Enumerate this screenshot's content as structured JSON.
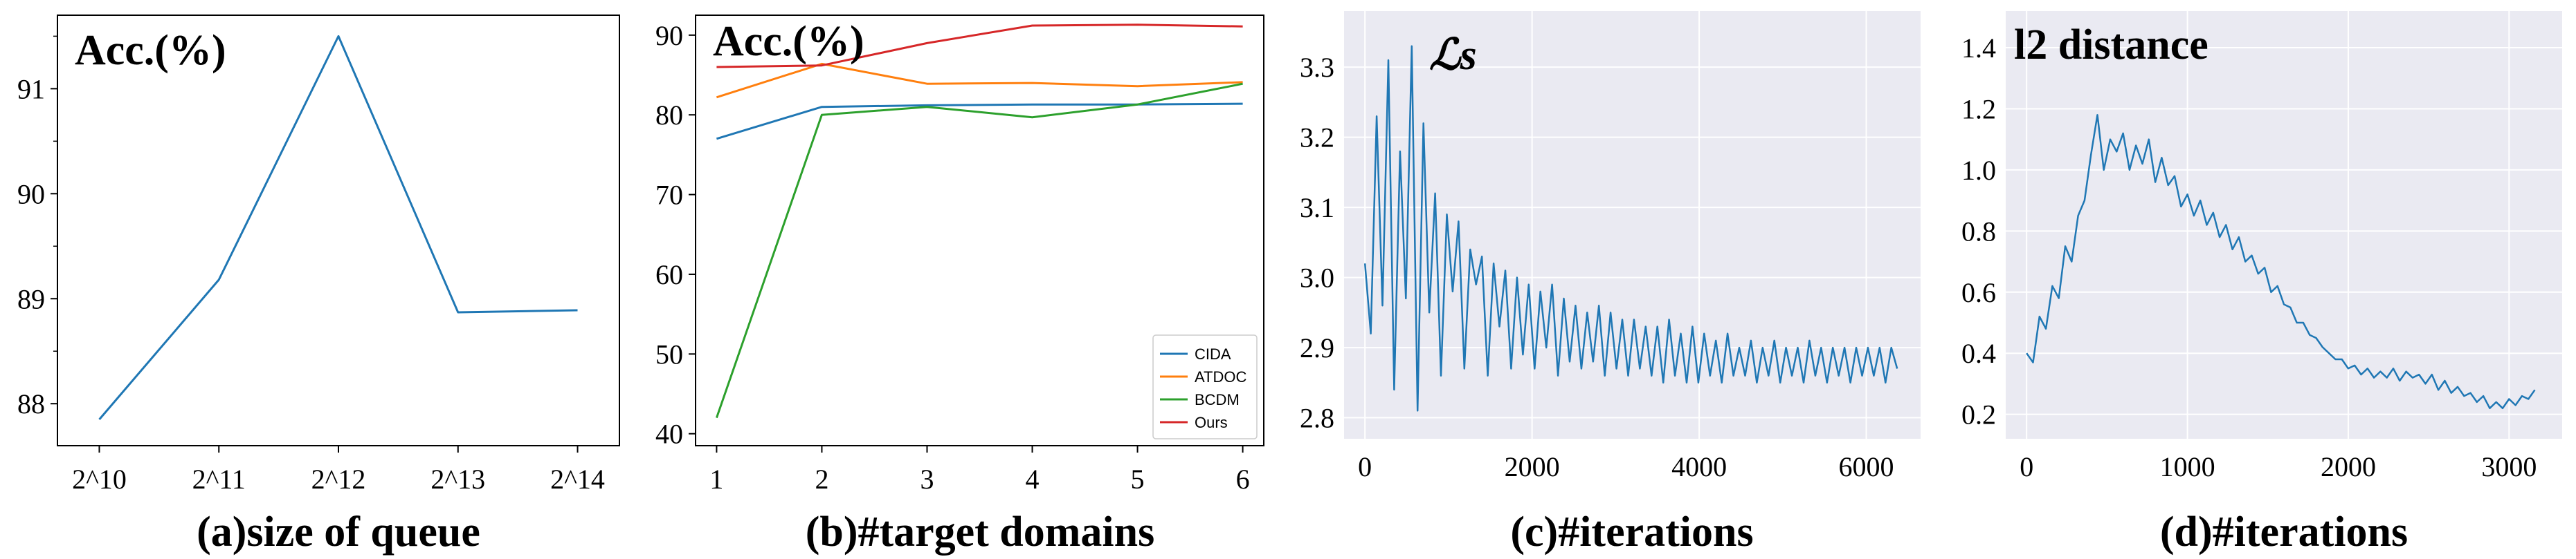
{
  "chart_data": [
    {
      "type": "line",
      "title": "Acc.(%)",
      "xlabel": "(a)size of queue",
      "categories": [
        "2^10",
        "2^11",
        "2^12",
        "2^13",
        "2^14"
      ],
      "series": [
        {
          "values": [
            87.85,
            89.18,
            91.5,
            88.87,
            88.89
          ]
        }
      ],
      "ylim": [
        87.6,
        91.7
      ],
      "yticks": [
        88,
        89,
        90,
        91
      ],
      "style": "white",
      "grid": false,
      "colors": [
        "#1f77b4"
      ]
    },
    {
      "type": "line",
      "title": "Acc.(%)",
      "xlabel": "(b)#target domains",
      "x": [
        1,
        2,
        3,
        4,
        5,
        6
      ],
      "xticks": [
        1,
        2,
        3,
        4,
        5,
        6
      ],
      "yticks": [
        40,
        50,
        60,
        70,
        80,
        90
      ],
      "ylim": [
        38.5,
        92.5
      ],
      "series": [
        {
          "name": "CIDA",
          "values": [
            77.0,
            81.0,
            81.2,
            81.3,
            81.3,
            81.4
          ]
        },
        {
          "name": "ATDOC",
          "values": [
            82.2,
            86.4,
            83.9,
            84.0,
            83.6,
            84.1
          ]
        },
        {
          "name": "BCDM",
          "values": [
            42.0,
            80.0,
            81.0,
            79.7,
            81.3,
            83.9
          ]
        },
        {
          "name": "Ours",
          "values": [
            86.0,
            86.2,
            89.0,
            91.2,
            91.3,
            91.1
          ]
        }
      ],
      "legend": "lower-right",
      "style": "white",
      "grid": false,
      "colors": [
        "#1f77b4",
        "#ff7f0e",
        "#2ca02c",
        "#d62728"
      ]
    },
    {
      "type": "line",
      "title": "ℒs",
      "xlabel": "(c)#iterations",
      "xlim": [
        -250,
        6650
      ],
      "ylim": [
        2.77,
        3.38
      ],
      "xticks": [
        0,
        2000,
        4000,
        6000
      ],
      "yticks": [
        2.8,
        2.9,
        3.0,
        3.1,
        3.2,
        3.3
      ],
      "yticklabels": [
        "2.8",
        "2.9",
        "3.0",
        "3.1",
        "3.2",
        "3.3"
      ],
      "series": [
        {
          "x_start": 0,
          "x_step": 70,
          "values": [
            3.02,
            2.92,
            3.23,
            2.96,
            3.31,
            2.84,
            3.18,
            2.97,
            3.33,
            2.81,
            3.22,
            2.95,
            3.12,
            2.86,
            3.09,
            2.98,
            3.08,
            2.87,
            3.04,
            2.99,
            3.03,
            2.86,
            3.02,
            2.93,
            3.01,
            2.87,
            3.0,
            2.89,
            2.99,
            2.87,
            2.98,
            2.9,
            2.99,
            2.86,
            2.97,
            2.88,
            2.96,
            2.87,
            2.95,
            2.88,
            2.96,
            2.86,
            2.95,
            2.87,
            2.94,
            2.86,
            2.94,
            2.87,
            2.93,
            2.86,
            2.93,
            2.85,
            2.94,
            2.86,
            2.92,
            2.85,
            2.93,
            2.85,
            2.92,
            2.86,
            2.91,
            2.85,
            2.92,
            2.86,
            2.9,
            2.86,
            2.91,
            2.85,
            2.9,
            2.86,
            2.91,
            2.85,
            2.9,
            2.86,
            2.9,
            2.85,
            2.91,
            2.86,
            2.9,
            2.85,
            2.9,
            2.86,
            2.9,
            2.85,
            2.9,
            2.86,
            2.9,
            2.86,
            2.9,
            2.85,
            2.9,
            2.87
          ]
        }
      ],
      "style": "seaborn-darkgrid",
      "grid": true,
      "colors": [
        "#1f77b4"
      ]
    },
    {
      "type": "line",
      "title": "l2 distance",
      "xlabel": "(d)#iterations",
      "xlim": [
        -130,
        3330
      ],
      "ylim": [
        0.12,
        1.52
      ],
      "xticks": [
        0,
        1000,
        2000,
        3000
      ],
      "yticks": [
        0.2,
        0.4,
        0.6,
        0.8,
        1.0,
        1.2,
        1.4
      ],
      "yticklabels": [
        "0.2",
        "0.4",
        "0.6",
        "0.8",
        "1.0",
        "1.2",
        "1.4"
      ],
      "series": [
        {
          "x_start": 0,
          "x_step": 40,
          "values": [
            0.4,
            0.37,
            0.52,
            0.48,
            0.62,
            0.58,
            0.75,
            0.7,
            0.85,
            0.9,
            1.05,
            1.18,
            1.0,
            1.1,
            1.06,
            1.12,
            1.0,
            1.08,
            1.02,
            1.1,
            0.96,
            1.04,
            0.95,
            0.98,
            0.88,
            0.92,
            0.85,
            0.9,
            0.82,
            0.86,
            0.78,
            0.82,
            0.74,
            0.78,
            0.7,
            0.72,
            0.66,
            0.68,
            0.6,
            0.62,
            0.56,
            0.55,
            0.5,
            0.5,
            0.46,
            0.45,
            0.42,
            0.4,
            0.38,
            0.38,
            0.35,
            0.36,
            0.33,
            0.35,
            0.32,
            0.34,
            0.32,
            0.35,
            0.31,
            0.34,
            0.32,
            0.33,
            0.3,
            0.33,
            0.28,
            0.31,
            0.27,
            0.29,
            0.26,
            0.27,
            0.24,
            0.26,
            0.22,
            0.24,
            0.22,
            0.25,
            0.23,
            0.26,
            0.25,
            0.28
          ]
        }
      ],
      "style": "seaborn-darkgrid",
      "grid": true,
      "colors": [
        "#1f77b4"
      ]
    }
  ]
}
